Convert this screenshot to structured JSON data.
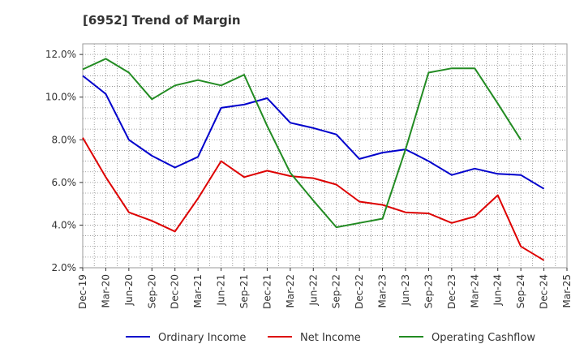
{
  "chart_data": {
    "type": "line",
    "title": "[6952]  Trend of Margin",
    "xlabel": "",
    "ylabel": "",
    "ylim": [
      2.0,
      12.5
    ],
    "y_ticks": [
      "2.0%",
      "4.0%",
      "6.0%",
      "8.0%",
      "10.0%",
      "12.0%"
    ],
    "y_tick_values": [
      2,
      4,
      6,
      8,
      10,
      12
    ],
    "categories": [
      "Dec-19",
      "Mar-20",
      "Jun-20",
      "Sep-20",
      "Dec-20",
      "Mar-21",
      "Jun-21",
      "Sep-21",
      "Dec-21",
      "Mar-22",
      "Jun-22",
      "Sep-22",
      "Dec-22",
      "Mar-23",
      "Jun-23",
      "Sep-23",
      "Dec-23",
      "Mar-24",
      "Jun-24",
      "Sep-24",
      "Dec-24",
      "Mar-25"
    ],
    "x_tick_labels": [
      "Dec-19",
      "Mar-20",
      "Jun-20",
      "Sep-20",
      "Dec-20",
      "Mar-21",
      "Jun-21",
      "Sep-21",
      "Dec-21",
      "Mar-22",
      "Jun-22",
      "Sep-22",
      "Dec-22",
      "Mar-23",
      "Jun-23",
      "Sep-23",
      "Dec-23",
      "Mar-24",
      "Jun-24",
      "Sep-24",
      "Dec-24",
      "Mar-25"
    ],
    "grid": true,
    "legend_position": "bottom",
    "series": [
      {
        "name": "Ordinary Income",
        "color": "#0000cc",
        "values": [
          11.0,
          10.15,
          8.0,
          7.25,
          6.7,
          7.2,
          9.5,
          9.65,
          9.95,
          8.8,
          8.55,
          8.25,
          7.1,
          7.4,
          7.55,
          7.0,
          6.35,
          6.65,
          6.4,
          6.35,
          5.7,
          null
        ]
      },
      {
        "name": "Net Income",
        "color": "#dd0000",
        "values": [
          8.1,
          6.25,
          4.6,
          4.2,
          3.7,
          5.25,
          7.0,
          6.25,
          6.55,
          6.3,
          6.2,
          5.9,
          5.1,
          4.95,
          4.6,
          4.55,
          4.1,
          4.4,
          5.4,
          3.0,
          2.35,
          null
        ]
      },
      {
        "name": "Operating Cashflow",
        "color": "#228b22",
        "values": [
          11.3,
          11.8,
          11.15,
          9.9,
          10.55,
          10.8,
          10.55,
          11.05,
          8.65,
          6.45,
          5.15,
          3.9,
          4.1,
          4.3,
          7.55,
          11.15,
          11.35,
          11.35,
          9.7,
          8.0,
          null,
          null
        ]
      }
    ]
  }
}
